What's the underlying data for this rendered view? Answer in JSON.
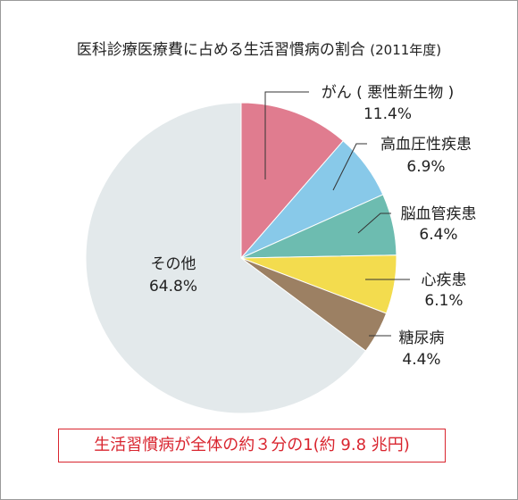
{
  "chart_data": {
    "type": "pie",
    "title": "医科診療医療費に占める生活習慣病の割合",
    "subtitle": "(2011年度)",
    "slices": [
      {
        "label": "がん ( 悪性新生物 )",
        "value_label": "11.4%",
        "value": 11.4,
        "color": "#e07c8f"
      },
      {
        "label": "高血圧性疾患",
        "value_label": "6.9%",
        "value": 6.9,
        "color": "#88c9e9"
      },
      {
        "label": "脳血管疾患",
        "value_label": "6.4%",
        "value": 6.4,
        "color": "#6dbcb0"
      },
      {
        "label": "心疾患",
        "value_label": "6.1%",
        "value": 6.1,
        "color": "#f3dc4e"
      },
      {
        "label": "糖尿病",
        "value_label": "4.4%",
        "value": 4.4,
        "color": "#9c8063"
      },
      {
        "label": "その他",
        "value_label": "64.8%",
        "value": 64.8,
        "color": "#e3e9eb"
      }
    ]
  },
  "note": "生活習慣病が全体の約３分の1(約 9.8 兆円)"
}
